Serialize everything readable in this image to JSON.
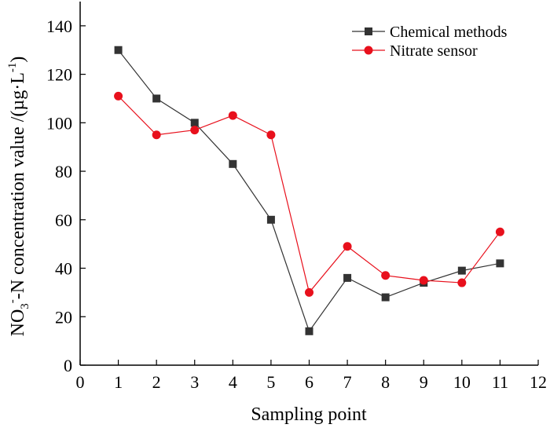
{
  "chart_data": {
    "type": "line",
    "title": "",
    "xlabel": "Sampling point",
    "ylabel": {
      "prefix": "NO",
      "sub": "3",
      "sup": "-",
      "middle": "-N concentration value /(µg·L",
      "unit_sup": "-1",
      "suffix": ")"
    },
    "xlim": [
      0,
      12
    ],
    "ylim": [
      0,
      150
    ],
    "xticks": [
      "0",
      "1",
      "2",
      "3",
      "4",
      "5",
      "6",
      "7",
      "8",
      "9",
      "10",
      "11",
      "12"
    ],
    "yticks": [
      "0",
      "20",
      "40",
      "60",
      "80",
      "100",
      "120",
      "140"
    ],
    "grid": false,
    "legend_position": "top-right",
    "x": [
      1,
      2,
      3,
      4,
      5,
      6,
      7,
      8,
      9,
      10,
      11
    ],
    "series": [
      {
        "name": "Chemical methods",
        "color": "#333333",
        "marker": "square",
        "values": [
          130,
          110,
          100,
          83,
          60,
          14,
          36,
          28,
          34,
          39,
          42
        ]
      },
      {
        "name": "Nitrate sensor",
        "color": "#e8101c",
        "marker": "circle",
        "values": [
          111,
          95,
          97,
          103,
          95,
          30,
          49,
          37,
          35,
          34,
          55
        ]
      }
    ]
  }
}
